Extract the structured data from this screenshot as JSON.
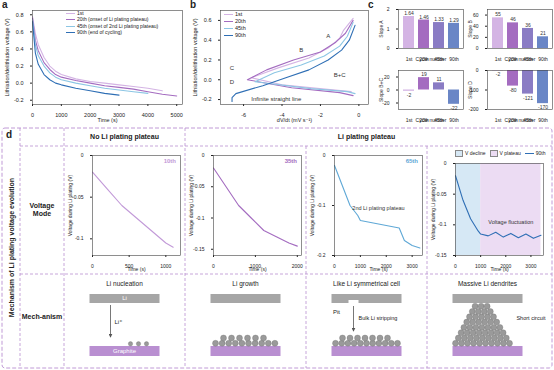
{
  "chart_data": [
    {
      "panel_label": "a",
      "type": "line",
      "x_label": "Time (s)",
      "y_label": "Lithiation/delithiation voltage (V)",
      "x": [
        0,
        100,
        200,
        400,
        600,
        800,
        1000,
        1500,
        2000,
        2500,
        3000,
        3500,
        4000,
        4500,
        5000
      ],
      "series": [
        {
          "name": "1st",
          "color": "#d4b4e4",
          "values": [
            0.78,
            0.58,
            0.45,
            0.3,
            0.2,
            0.14,
            0.1,
            0.05,
            0.02,
            0.0,
            -0.02,
            -0.04,
            -0.06,
            -0.09,
            null
          ]
        },
        {
          "name": "20th (onset of Li plating plateau)",
          "color": "#a46cc0",
          "values": [
            0.76,
            0.5,
            0.38,
            0.24,
            0.16,
            0.1,
            0.07,
            0.03,
            0.0,
            -0.03,
            -0.05,
            -0.07,
            -0.1,
            -0.13,
            -0.15
          ]
        },
        {
          "name": "45th (onset of 2nd Li plating plateau)",
          "color": "#8cc6e4",
          "values": [
            0.74,
            0.45,
            0.32,
            0.2,
            0.12,
            0.07,
            0.04,
            0.0,
            -0.03,
            -0.06,
            -0.08,
            -0.1,
            -0.12,
            null,
            null
          ]
        },
        {
          "name": "90th (end of cycling)",
          "color": "#2f6fb5",
          "values": [
            0.72,
            0.35,
            0.22,
            0.1,
            0.04,
            0.0,
            -0.02,
            -0.06,
            -0.09,
            -0.12,
            -0.14,
            null,
            null,
            null,
            null
          ]
        }
      ],
      "xlim": [
        0,
        5200
      ],
      "xticks": [
        0,
        1000,
        2000,
        3000,
        4000,
        5000
      ],
      "ylim": [
        -0.25,
        0.85
      ],
      "yticks": [
        -0.2,
        {
          "value": 0,
          "label": "0.0"
        },
        0.2,
        0.4,
        0.6,
        0.8
      ]
    },
    {
      "panel_label": "b",
      "type": "line",
      "x_label": "dV/dt (mV s⁻¹)",
      "y_label": "Lithiation/delithiation voltage (V)",
      "series": [
        {
          "name": "1st",
          "color": "#d4b4e4",
          "x": [
            -0.3,
            -0.8,
            -1.0,
            -1.6,
            -2.6,
            -4.2,
            -5.6,
            -4.0,
            -1.5,
            -0.4
          ],
          "values": [
            0.62,
            0.5,
            0.42,
            0.32,
            0.22,
            0.12,
            0.02,
            -0.05,
            -0.1,
            -0.12
          ]
        },
        {
          "name": "20th",
          "color": "#a46cc0",
          "x": [
            -0.3,
            -0.7,
            -1.2,
            -2.0,
            -3.4,
            -4.8,
            -5.8,
            -3.5,
            -1.0,
            -0.3
          ],
          "values": [
            0.6,
            0.47,
            0.38,
            0.28,
            0.2,
            0.1,
            0.0,
            -0.08,
            -0.13,
            -0.16
          ]
        },
        {
          "name": "45th",
          "color": "#8cc6e4",
          "x": [
            -0.3,
            -0.6,
            -1.0,
            -1.8,
            -3.0,
            -4.4,
            -5.4,
            -2.5,
            -0.6,
            -0.2
          ],
          "values": [
            0.58,
            0.44,
            0.34,
            0.24,
            0.15,
            0.07,
            -0.02,
            -0.09,
            -0.12,
            -0.14
          ]
        },
        {
          "name": "90th",
          "color": "#2f6fb5",
          "x": [
            -0.2,
            -0.5,
            -0.9,
            -1.6,
            -2.6,
            -3.8,
            -5.0,
            -6.4,
            -6.6,
            -6.6
          ],
          "values": [
            0.55,
            0.4,
            0.3,
            0.2,
            0.1,
            0.02,
            -0.06,
            -0.14,
            -0.18,
            -0.22
          ]
        }
      ],
      "annotations": [
        {
          "text": "A",
          "x": -1.6,
          "y": 0.44
        },
        {
          "text": "B",
          "x": -3.0,
          "y": 0.3
        },
        {
          "text": "C",
          "x": -6.6,
          "y": 0.12
        },
        {
          "text": "D",
          "x": -6.6,
          "y": -0.02
        },
        {
          "text": "B+C",
          "x": -1.0,
          "y": 0.05
        },
        {
          "text": "Infinite straight line",
          "x": -4.3,
          "y": -0.2
        }
      ],
      "xlim": [
        -7.2,
        0.5
      ],
      "xticks": [
        -6,
        -4,
        -2,
        0
      ],
      "ylim": [
        -0.25,
        0.7
      ],
      "yticks": [
        -0.2,
        {
          "value": 0,
          "label": "0.0"
        },
        0.2,
        0.4,
        0.6
      ]
    },
    {
      "panel_label": "c",
      "type": "bar",
      "x_label": "Cycle number",
      "y_label": "Slope A",
      "categories": [
        "1st",
        "20th",
        "45th",
        "90th"
      ],
      "values": [
        1.64,
        1.46,
        1.33,
        1.29
      ],
      "colors": [
        "#d4b4e4",
        "#a46cc0",
        "#8a7cc4",
        "#6a86c6"
      ],
      "data_labels": true,
      "ylim": [
        0,
        2
      ],
      "yticks": [
        0,
        1,
        2
      ]
    },
    {
      "type": "bar",
      "x_label": "Cycle number",
      "y_label": "Slope B",
      "categories": [
        "1st",
        "20th",
        "45th",
        "90th"
      ],
      "values": [
        55,
        46,
        36,
        21
      ],
      "colors": [
        "#d4b4e4",
        "#a46cc0",
        "#8a7cc4",
        "#6a86c6"
      ],
      "data_labels": true,
      "ylim": [
        0,
        70
      ],
      "yticks": [
        0,
        20,
        40,
        60
      ]
    },
    {
      "type": "bar",
      "x_label": "Cycle number",
      "y_label": "Slope B+C",
      "categories": [
        "1st",
        "20th",
        "45th",
        "90th"
      ],
      "values": [
        -2,
        19,
        11,
        -22
      ],
      "colors": [
        "#d4b4e4",
        "#a46cc0",
        "#8a7cc4",
        "#6a86c6"
      ],
      "data_labels": true,
      "ylim": [
        -30,
        30
      ],
      "yticks": [
        -20,
        0,
        20
      ]
    },
    {
      "type": "bar",
      "x_label": "Cycle number",
      "y_label": "Slope D",
      "categories": [
        "1st",
        "20th",
        "45th",
        "90th"
      ],
      "values": [
        -2,
        -80,
        -121,
        -170
      ],
      "colors": [
        "#d4b4e4",
        "#a46cc0",
        "#8a7cc4",
        "#6a86c6"
      ],
      "data_labels": true,
      "ylim": [
        -200,
        0
      ],
      "yticks": [
        -200,
        -100,
        0
      ]
    }
  ],
  "diagram": {
    "panel_label": "d",
    "side_title": "Mechanism of Li plating voltage evolution",
    "column_groups": [
      {
        "label": "No Li plating plateau",
        "span": 1
      },
      {
        "label": "Li plating plateau",
        "span": 3
      }
    ],
    "row_labels": [
      "Voltage Mode",
      "Mech-anism"
    ],
    "voltage_charts": [
      {
        "type": "line",
        "x_label": "Time (s)",
        "y_label": "Voltage during Li plating (V)",
        "x": [
          0,
          200,
          400,
          600,
          800,
          1000,
          1100
        ],
        "series": [
          {
            "name": "10th",
            "color": "#c29ad8",
            "values": [
              -0.02,
              -0.04,
              -0.06,
              -0.075,
              -0.09,
              -0.105,
              -0.11
            ]
          }
        ],
        "xlim": [
          0,
          1200
        ],
        "xticks": [
          0,
          500,
          1000
        ],
        "ylim": [
          -0.12,
          0
        ],
        "yticks": [
          -0.1,
          -0.05,
          0
        ]
      },
      {
        "type": "line",
        "x_label": "Time (s)",
        "y_label": "Voltage during Li plating (V)",
        "x": [
          0,
          300,
          600,
          900,
          1200,
          1500,
          1800,
          2000
        ],
        "series": [
          {
            "name": "35th",
            "color": "#a46cc0",
            "values": [
              -0.02,
              -0.05,
              -0.08,
              -0.1,
              -0.12,
              -0.13,
              -0.14,
              -0.145
            ]
          }
        ],
        "xlim": [
          0,
          2100
        ],
        "xticks": [
          0,
          1000,
          2000
        ],
        "ylim": [
          -0.16,
          0
        ],
        "yticks": [
          -0.15,
          -0.1,
          -0.05,
          0
        ]
      },
      {
        "type": "line",
        "x_label": "Time (s)",
        "y_label": "Voltage during Li plating (V)",
        "x": [
          0,
          300,
          600,
          900,
          1000,
          1500,
          2000,
          2500,
          2700,
          3000,
          3300
        ],
        "series": [
          {
            "name": "65th",
            "color": "#5fa8d6",
            "values": [
              -0.02,
              -0.06,
              -0.1,
              -0.12,
              -0.13,
              -0.135,
              -0.14,
              -0.145,
              -0.17,
              -0.18,
              -0.185
            ]
          }
        ],
        "annotations": [
          {
            "text": "2nd Li plating plateau",
            "x": 1700,
            "y": -0.105
          }
        ],
        "xlim": [
          0,
          3400
        ],
        "xticks": [
          0,
          1000,
          2000,
          3000
        ],
        "ylim": [
          -0.2,
          0
        ],
        "yticks": [
          -0.2,
          -0.1,
          0
        ]
      },
      {
        "type": "line",
        "x_label": "Time (s)",
        "y_label": "Voltage during Li plating (V)",
        "x": [
          0,
          300,
          600,
          900,
          1000,
          1300,
          1600,
          1900,
          2200,
          2500,
          2800,
          3100,
          3400
        ],
        "series": [
          {
            "name": "90th",
            "color": "#2f6fb5",
            "values": [
              -0.02,
              -0.06,
              -0.09,
              -0.11,
              -0.115,
              -0.118,
              -0.112,
              -0.12,
              -0.114,
              -0.121,
              -0.115,
              -0.122,
              -0.117
            ]
          }
        ],
        "regions": [
          {
            "name": "V decline",
            "color": "#d6e8f5",
            "x": [
              0,
              1000
            ]
          },
          {
            "name": "V plateau",
            "color": "#ecdcf3",
            "x": [
              1000,
              3400
            ]
          }
        ],
        "annotations": [
          {
            "text": "Voltage fluctuation",
            "x": 2200,
            "y": -0.095
          }
        ],
        "xlim": [
          0,
          3500
        ],
        "xticks": [
          0,
          1000,
          2000,
          3000
        ],
        "ylim": [
          -0.15,
          0
        ],
        "yticks": [
          -0.15,
          -0.1,
          -0.05,
          0
        ]
      }
    ],
    "mechanisms": [
      {
        "title": "Li nucleation",
        "labels": [
          "Li",
          "Li⁺",
          "Graphite"
        ]
      },
      {
        "title": "Li growth"
      },
      {
        "title": "Like Li symmetrical cell",
        "labels": [
          "Pit",
          "Bulk Li stripping"
        ]
      },
      {
        "title": "Massive Li dendrites",
        "labels": [
          "Short circuit"
        ]
      }
    ]
  }
}
